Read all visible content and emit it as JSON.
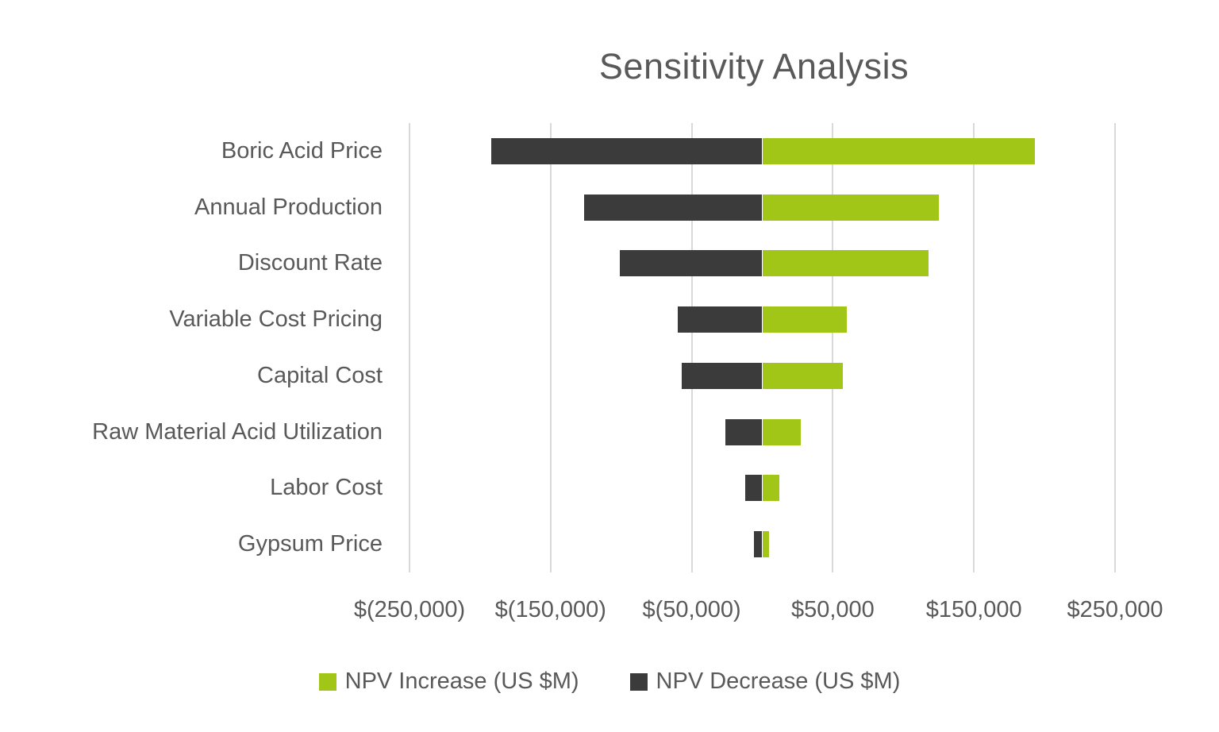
{
  "chart_data": {
    "type": "bar",
    "subtype": "tornado-horizontal-diverging",
    "title": "Sensitivity Analysis",
    "categories": [
      "Boric Acid Price",
      "Annual Production",
      "Discount Rate",
      "Variable Cost Pricing",
      "Capital Cost",
      "Raw Material Acid Utilization",
      "Labor Cost",
      "Gypsum Price"
    ],
    "series": [
      {
        "name": "NPV Increase (US $M)",
        "color": "#a2c617",
        "values": [
          193000,
          125000,
          118000,
          60000,
          57000,
          27000,
          12000,
          5000
        ]
      },
      {
        "name": "NPV Decrease (US $M)",
        "color": "#3b3b3b",
        "values": [
          -192000,
          -126000,
          -101000,
          -60000,
          -57000,
          -26000,
          -12000,
          -6000
        ]
      }
    ],
    "x_axis": {
      "min": -250000,
      "max": 250000,
      "ticks": [
        -250000,
        -150000,
        -50000,
        50000,
        150000,
        250000
      ],
      "tick_labels": [
        "$(250,000)",
        "$(150,000)",
        "$(50,000)",
        "$50,000",
        "$150,000",
        "$250,000"
      ]
    },
    "ylabel": "",
    "xlabel": "",
    "grid": true,
    "legend_position": "bottom"
  },
  "colors": {
    "increase": "#a2c617",
    "decrease": "#3b3b3b",
    "text": "#595959",
    "gridline": "#d9d9d9",
    "background": "#ffffff"
  }
}
